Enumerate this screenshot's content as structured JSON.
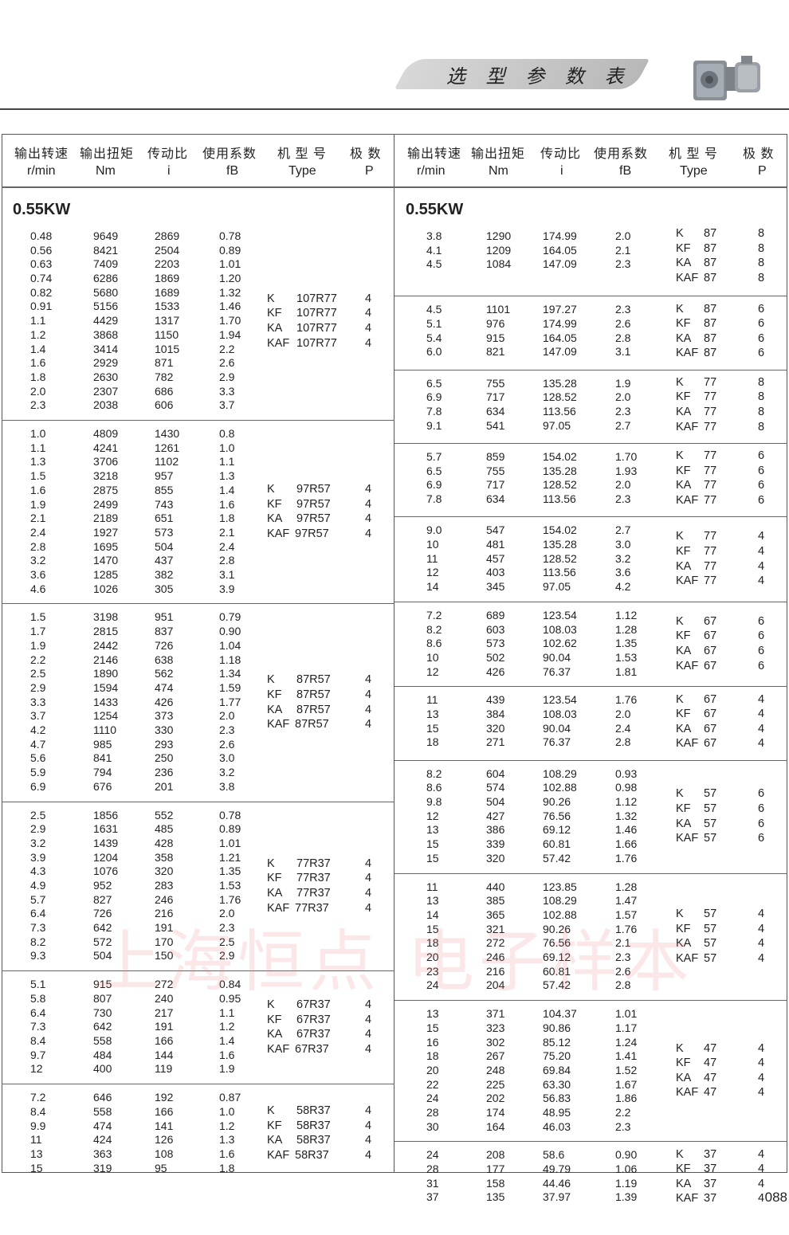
{
  "header": {
    "title": "选 型 参 数 表",
    "icon": "gearbox-image"
  },
  "columns": {
    "cn": [
      "输出转速",
      "输出扭矩",
      "传动比",
      "使用系数",
      "机 型 号",
      "极  数"
    ],
    "en": [
      "r/min",
      "Nm",
      "i",
      "fB",
      "Type",
      "P"
    ]
  },
  "watermark": "上海恒点  电子样本",
  "page_number": "088",
  "left": {
    "power": "0.55KW",
    "groups": [
      {
        "rows": [
          [
            "0.48",
            "9649",
            "2869",
            "0.78"
          ],
          [
            "0.56",
            "8421",
            "2504",
            "0.89"
          ],
          [
            "0.63",
            "7409",
            "2203",
            "1.01"
          ],
          [
            "0.74",
            "6286",
            "1869",
            "1.20"
          ],
          [
            "0.82",
            "5680",
            "1689",
            "1.32"
          ],
          [
            "0.91",
            "5156",
            "1533",
            "1.46"
          ],
          [
            "1.1",
            "4429",
            "1317",
            "1.70"
          ],
          [
            "1.2",
            "3868",
            "1150",
            "1.94"
          ],
          [
            "1.4",
            "3414",
            "1015",
            "2.2"
          ],
          [
            "1.6",
            "2929",
            "871",
            "2.6"
          ],
          [
            "1.8",
            "2630",
            "782",
            "2.9"
          ],
          [
            "2.0",
            "2307",
            "686",
            "3.3"
          ],
          [
            "2.3",
            "2038",
            "606",
            "3.7"
          ]
        ],
        "types": [
          [
            "K",
            "107R77",
            "4"
          ],
          [
            "KF",
            "107R77",
            "4"
          ],
          [
            "KA",
            "107R77",
            "4"
          ],
          [
            "KAF",
            "107R77",
            "4"
          ]
        ]
      },
      {
        "rows": [
          [
            "1.0",
            "4809",
            "1430",
            "0.8"
          ],
          [
            "1.1",
            "4241",
            "1261",
            "1.0"
          ],
          [
            "1.3",
            "3706",
            "1102",
            "1.1"
          ],
          [
            "1.5",
            "3218",
            "957",
            "1.3"
          ],
          [
            "1.6",
            "2875",
            "855",
            "1.4"
          ],
          [
            "1.9",
            "2499",
            "743",
            "1.6"
          ],
          [
            "2.1",
            "2189",
            "651",
            "1.8"
          ],
          [
            "2.4",
            "1927",
            "573",
            "2.1"
          ],
          [
            "2.8",
            "1695",
            "504",
            "2.4"
          ],
          [
            "3.2",
            "1470",
            "437",
            "2.8"
          ],
          [
            "3.6",
            "1285",
            "382",
            "3.1"
          ],
          [
            "4.6",
            "1026",
            "305",
            "3.9"
          ]
        ],
        "types": [
          [
            "K",
            "97R57",
            "4"
          ],
          [
            "KF",
            "97R57",
            "4"
          ],
          [
            "KA",
            "97R57",
            "4"
          ],
          [
            "KAF",
            "97R57",
            "4"
          ]
        ]
      },
      {
        "rows": [
          [
            "1.5",
            "3198",
            "951",
            "0.79"
          ],
          [
            "1.7",
            "2815",
            "837",
            "0.90"
          ],
          [
            "1.9",
            "2442",
            "726",
            "1.04"
          ],
          [
            "2.2",
            "2146",
            "638",
            "1.18"
          ],
          [
            "2.5",
            "1890",
            "562",
            "1.34"
          ],
          [
            "2.9",
            "1594",
            "474",
            "1.59"
          ],
          [
            "3.3",
            "1433",
            "426",
            "1.77"
          ],
          [
            "3.7",
            "1254",
            "373",
            "2.0"
          ],
          [
            "4.2",
            "1110",
            "330",
            "2.3"
          ],
          [
            "4.7",
            "985",
            "293",
            "2.6"
          ],
          [
            "5.6",
            "841",
            "250",
            "3.0"
          ],
          [
            "5.9",
            "794",
            "236",
            "3.2"
          ],
          [
            "6.9",
            "676",
            "201",
            "3.8"
          ]
        ],
        "types": [
          [
            "K",
            "87R57",
            "4"
          ],
          [
            "KF",
            "87R57",
            "4"
          ],
          [
            "KA",
            "87R57",
            "4"
          ],
          [
            "KAF",
            "87R57",
            "4"
          ]
        ]
      },
      {
        "rows": [
          [
            "2.5",
            "1856",
            "552",
            "0.78"
          ],
          [
            "2.9",
            "1631",
            "485",
            "0.89"
          ],
          [
            "3.2",
            "1439",
            "428",
            "1.01"
          ],
          [
            "3.9",
            "1204",
            "358",
            "1.21"
          ],
          [
            "4.3",
            "1076",
            "320",
            "1.35"
          ],
          [
            "4.9",
            "952",
            "283",
            "1.53"
          ],
          [
            "5.7",
            "827",
            "246",
            "1.76"
          ],
          [
            "6.4",
            "726",
            "216",
            "2.0"
          ],
          [
            "7.3",
            "642",
            "191",
            "2.3"
          ],
          [
            "8.2",
            "572",
            "170",
            "2.5"
          ],
          [
            "9.3",
            "504",
            "150",
            "2.9"
          ]
        ],
        "types": [
          [
            "K",
            "77R37",
            "4"
          ],
          [
            "KF",
            "77R37",
            "4"
          ],
          [
            "KA",
            "77R37",
            "4"
          ],
          [
            "KAF",
            "77R37",
            "4"
          ]
        ]
      },
      {
        "rows": [
          [
            "5.1",
            "915",
            "272",
            "0.84"
          ],
          [
            "5.8",
            "807",
            "240",
            "0.95"
          ],
          [
            "6.4",
            "730",
            "217",
            "1.1"
          ],
          [
            "7.3",
            "642",
            "191",
            "1.2"
          ],
          [
            "8.4",
            "558",
            "166",
            "1.4"
          ],
          [
            "9.7",
            "484",
            "144",
            "1.6"
          ],
          [
            "12",
            "400",
            "119",
            "1.9"
          ]
        ],
        "types": [
          [
            "K",
            "67R37",
            "4"
          ],
          [
            "KF",
            "67R37",
            "4"
          ],
          [
            "KA",
            "67R37",
            "4"
          ],
          [
            "KAF",
            "67R37",
            "4"
          ]
        ]
      },
      {
        "rows": [
          [
            "7.2",
            "646",
            "192",
            "0.87"
          ],
          [
            "8.4",
            "558",
            "166",
            "1.0"
          ],
          [
            "9.9",
            "474",
            "141",
            "1.2"
          ],
          [
            "11",
            "424",
            "126",
            "1.3"
          ],
          [
            "13",
            "363",
            "108",
            "1.6"
          ],
          [
            "15",
            "319",
            "95",
            "1.8"
          ]
        ],
        "types": [
          [
            "K",
            "58R37",
            "4"
          ],
          [
            "KF",
            "58R37",
            "4"
          ],
          [
            "KA",
            "58R37",
            "4"
          ],
          [
            "KAF",
            "58R37",
            "4"
          ]
        ]
      }
    ]
  },
  "right": {
    "power": "0.55KW",
    "groups": [
      {
        "rows": [
          [
            "3.8",
            "1290",
            "174.99",
            "2.0"
          ],
          [
            "4.1",
            "1209",
            "164.05",
            "2.1"
          ],
          [
            "4.5",
            "1084",
            "147.09",
            "2.3"
          ]
        ],
        "types": [
          [
            "K",
            "87",
            "8"
          ],
          [
            "KF",
            "87",
            "8"
          ],
          [
            "KA",
            "87",
            "8"
          ],
          [
            "KAF",
            "87",
            "8"
          ]
        ]
      },
      {
        "rows": [
          [
            "4.5",
            "1101",
            "197.27",
            "2.3"
          ],
          [
            "5.1",
            "976",
            "174.99",
            "2.6"
          ],
          [
            "5.4",
            "915",
            "164.05",
            "2.8"
          ],
          [
            "6.0",
            "821",
            "147.09",
            "3.1"
          ]
        ],
        "types": [
          [
            "K",
            "87",
            "6"
          ],
          [
            "KF",
            "87",
            "6"
          ],
          [
            "KA",
            "87",
            "6"
          ],
          [
            "KAF",
            "87",
            "6"
          ]
        ]
      },
      {
        "rows": [
          [
            "6.5",
            "755",
            "135.28",
            "1.9"
          ],
          [
            "6.9",
            "717",
            "128.52",
            "2.0"
          ],
          [
            "7.8",
            "634",
            "113.56",
            "2.3"
          ],
          [
            "9.1",
            "541",
            "97.05",
            "2.7"
          ]
        ],
        "types": [
          [
            "K",
            "77",
            "8"
          ],
          [
            "KF",
            "77",
            "8"
          ],
          [
            "KA",
            "77",
            "8"
          ],
          [
            "KAF",
            "77",
            "8"
          ]
        ]
      },
      {
        "rows": [
          [
            "5.7",
            "859",
            "154.02",
            "1.70"
          ],
          [
            "6.5",
            "755",
            "135.28",
            "1.93"
          ],
          [
            "6.9",
            "717",
            "128.52",
            "2.0"
          ],
          [
            "7.8",
            "634",
            "113.56",
            "2.3"
          ]
        ],
        "types": [
          [
            "K",
            "77",
            "6"
          ],
          [
            "KF",
            "77",
            "6"
          ],
          [
            "KA",
            "77",
            "6"
          ],
          [
            "KAF",
            "77",
            "6"
          ]
        ]
      },
      {
        "rows": [
          [
            "9.0",
            "547",
            "154.02",
            "2.7"
          ],
          [
            "10",
            "481",
            "135.28",
            "3.0"
          ],
          [
            "11",
            "457",
            "128.52",
            "3.2"
          ],
          [
            "12",
            "403",
            "113.56",
            "3.6"
          ],
          [
            "14",
            "345",
            "97.05",
            "4.2"
          ]
        ],
        "types": [
          [
            "K",
            "77",
            "4"
          ],
          [
            "KF",
            "77",
            "4"
          ],
          [
            "KA",
            "77",
            "4"
          ],
          [
            "KAF",
            "77",
            "4"
          ]
        ]
      },
      {
        "rows": [
          [
            "7.2",
            "689",
            "123.54",
            "1.12"
          ],
          [
            "8.2",
            "603",
            "108.03",
            "1.28"
          ],
          [
            "8.6",
            "573",
            "102.62",
            "1.35"
          ],
          [
            "10",
            "502",
            "90.04",
            "1.53"
          ],
          [
            "12",
            "426",
            "76.37",
            "1.81"
          ]
        ],
        "types": [
          [
            "K",
            "67",
            "6"
          ],
          [
            "KF",
            "67",
            "6"
          ],
          [
            "KA",
            "67",
            "6"
          ],
          [
            "KAF",
            "67",
            "6"
          ]
        ]
      },
      {
        "rows": [
          [
            "11",
            "439",
            "123.54",
            "1.76"
          ],
          [
            "13",
            "384",
            "108.03",
            "2.0"
          ],
          [
            "15",
            "320",
            "90.04",
            "2.4"
          ],
          [
            "18",
            "271",
            "76.37",
            "2.8"
          ]
        ],
        "types": [
          [
            "K",
            "67",
            "4"
          ],
          [
            "KF",
            "67",
            "4"
          ],
          [
            "KA",
            "67",
            "4"
          ],
          [
            "KAF",
            "67",
            "4"
          ]
        ]
      },
      {
        "rows": [
          [
            "8.2",
            "604",
            "108.29",
            "0.93"
          ],
          [
            "8.6",
            "574",
            "102.88",
            "0.98"
          ],
          [
            "9.8",
            "504",
            "90.26",
            "1.12"
          ],
          [
            "12",
            "427",
            "76.56",
            "1.32"
          ],
          [
            "13",
            "386",
            "69.12",
            "1.46"
          ],
          [
            "15",
            "339",
            "60.81",
            "1.66"
          ],
          [
            "15",
            "320",
            "57.42",
            "1.76"
          ]
        ],
        "types": [
          [
            "K",
            "57",
            "6"
          ],
          [
            "KF",
            "57",
            "6"
          ],
          [
            "KA",
            "57",
            "6"
          ],
          [
            "KAF",
            "57",
            "6"
          ]
        ]
      },
      {
        "rows": [
          [
            "11",
            "440",
            "123.85",
            "1.28"
          ],
          [
            "13",
            "385",
            "108.29",
            "1.47"
          ],
          [
            "14",
            "365",
            "102.88",
            "1.57"
          ],
          [
            "15",
            "321",
            "90.26",
            "1.76"
          ],
          [
            "18",
            "272",
            "76.56",
            "2.1"
          ],
          [
            "20",
            "246",
            "69.12",
            "2.3"
          ],
          [
            "23",
            "216",
            "60.81",
            "2.6"
          ],
          [
            "24",
            "204",
            "57.42",
            "2.8"
          ]
        ],
        "types": [
          [
            "K",
            "57",
            "4"
          ],
          [
            "KF",
            "57",
            "4"
          ],
          [
            "KA",
            "57",
            "4"
          ],
          [
            "KAF",
            "57",
            "4"
          ]
        ]
      },
      {
        "rows": [
          [
            "13",
            "371",
            "104.37",
            "1.01"
          ],
          [
            "15",
            "323",
            "90.86",
            "1.17"
          ],
          [
            "16",
            "302",
            "85.12",
            "1.24"
          ],
          [
            "18",
            "267",
            "75.20",
            "1.41"
          ],
          [
            "20",
            "248",
            "69.84",
            "1.52"
          ],
          [
            "22",
            "225",
            "63.30",
            "1.67"
          ],
          [
            "24",
            "202",
            "56.83",
            "1.86"
          ],
          [
            "28",
            "174",
            "48.95",
            "2.2"
          ],
          [
            "30",
            "164",
            "46.03",
            "2.3"
          ]
        ],
        "types": [
          [
            "K",
            "47",
            "4"
          ],
          [
            "KF",
            "47",
            "4"
          ],
          [
            "KA",
            "47",
            "4"
          ],
          [
            "KAF",
            "47",
            "4"
          ]
        ]
      },
      {
        "rows": [
          [
            "24",
            "208",
            "58.6",
            "0.90"
          ],
          [
            "28",
            "177",
            "49.79",
            "1.06"
          ],
          [
            "31",
            "158",
            "44.46",
            "1.19"
          ],
          [
            "37",
            "135",
            "37.97",
            "1.39"
          ]
        ],
        "types": [
          [
            "K",
            "37",
            "4"
          ],
          [
            "KF",
            "37",
            "4"
          ],
          [
            "KA",
            "37",
            "4"
          ],
          [
            "KAF",
            "37",
            "4"
          ]
        ]
      }
    ]
  }
}
